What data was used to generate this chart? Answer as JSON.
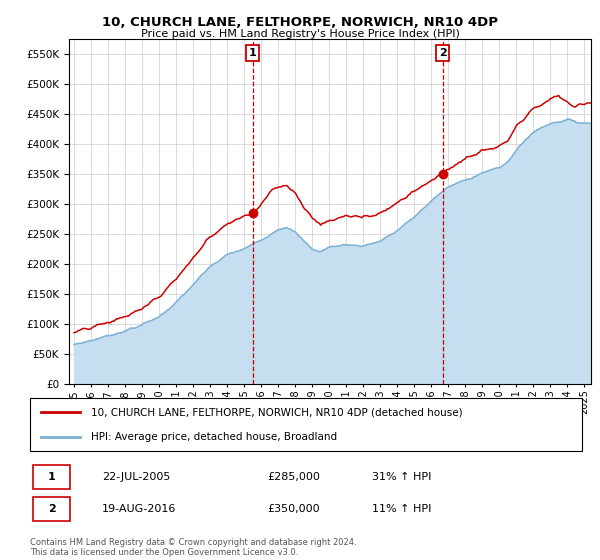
{
  "title": "10, CHURCH LANE, FELTHORPE, NORWICH, NR10 4DP",
  "subtitle": "Price paid vs. HM Land Registry's House Price Index (HPI)",
  "sale1_date": "22-JUL-2005",
  "sale1_price": 285000,
  "sale1_hpi": "31% ↑ HPI",
  "sale1_label": "1",
  "sale2_date": "19-AUG-2016",
  "sale2_price": 350000,
  "sale2_hpi": "11% ↑ HPI",
  "sale2_label": "2",
  "legend_property": "10, CHURCH LANE, FELTHORPE, NORWICH, NR10 4DP (detached house)",
  "legend_hpi": "HPI: Average price, detached house, Broadland",
  "footnote": "Contains HM Land Registry data © Crown copyright and database right 2024.\nThis data is licensed under the Open Government Licence v3.0.",
  "ylim_min": 0,
  "ylim_max": 575000,
  "property_color": "#cc0000",
  "hpi_color": "#7ab0d4",
  "hpi_fill_color": "#c5dff0",
  "sale_marker_color": "#cc0000",
  "vline_color": "#cc0000",
  "box_color": "#cc0000",
  "background_color": "#ffffff",
  "grid_color": "#cccccc"
}
